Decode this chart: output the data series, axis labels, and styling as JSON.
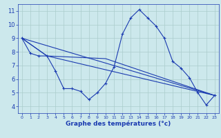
{
  "xlabel": "Graphe des températures (°c)",
  "background_color": "#cce8ec",
  "grid_color": "#aacccc",
  "line_color": "#1a3ab0",
  "xlim": [
    -0.5,
    23.5
  ],
  "ylim": [
    3.5,
    11.5
  ],
  "xticks": [
    0,
    1,
    2,
    3,
    4,
    5,
    6,
    7,
    8,
    9,
    10,
    11,
    12,
    13,
    14,
    15,
    16,
    17,
    18,
    19,
    20,
    21,
    22,
    23
  ],
  "yticks": [
    4,
    5,
    6,
    7,
    8,
    9,
    10,
    11
  ],
  "series": [
    {
      "x": [
        0,
        1,
        2,
        3,
        4,
        5,
        6,
        7,
        8,
        9,
        10,
        11,
        12,
        13,
        14,
        15,
        16,
        17,
        18,
        19,
        20,
        21,
        22,
        23
      ],
      "y": [
        9.0,
        7.9,
        7.7,
        7.7,
        6.6,
        5.3,
        5.3,
        5.1,
        4.5,
        5.0,
        5.7,
        6.9,
        9.3,
        10.5,
        11.1,
        10.5,
        9.9,
        9.0,
        7.3,
        6.8,
        6.1,
        5.0,
        4.1,
        4.8
      ],
      "marker": "+"
    },
    {
      "x": [
        0,
        23
      ],
      "y": [
        9.0,
        4.8
      ],
      "marker": null
    },
    {
      "x": [
        0,
        3,
        23
      ],
      "y": [
        9.0,
        7.7,
        4.8
      ],
      "marker": null
    },
    {
      "x": [
        0,
        3,
        10,
        23
      ],
      "y": [
        9.0,
        7.7,
        7.5,
        4.8
      ],
      "marker": null
    }
  ]
}
